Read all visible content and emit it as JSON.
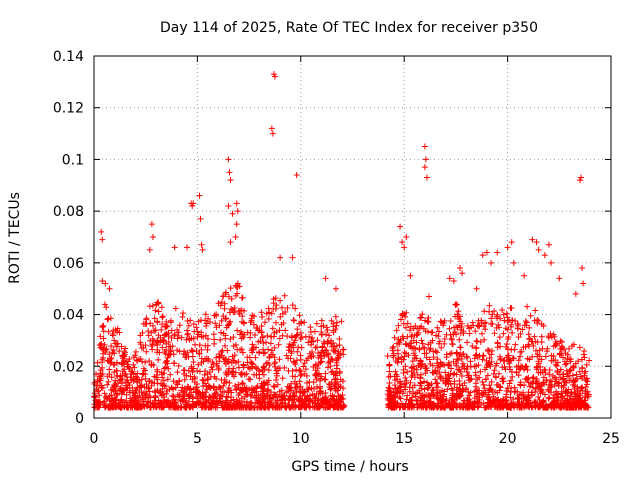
{
  "chart_data": {
    "type": "scatter",
    "title": "Day 114 of 2025, Rate Of TEC Index for receiver p350",
    "xlabel": "GPS time / hours",
    "ylabel": "ROTI / TECUs",
    "xlim": [
      0,
      25
    ],
    "ylim": [
      0,
      0.14
    ],
    "xticks": [
      "0",
      "5",
      "10",
      "15",
      "20",
      "25"
    ],
    "yticks": [
      "0",
      "0.02",
      "0.04",
      "0.06",
      "0.08",
      "0.1",
      "0.12",
      "0.14"
    ],
    "grid": true,
    "marker": "+",
    "color": "#ff0000",
    "segments": [
      {
        "x_start": 0.0,
        "x_end": 12.1
      },
      {
        "x_start": 14.2,
        "x_end": 23.95
      }
    ],
    "envelope": {
      "x": [
        0,
        0.5,
        1,
        1.5,
        2,
        2.5,
        3,
        3.5,
        4,
        4.5,
        5,
        5.5,
        6,
        6.5,
        7,
        7.5,
        8,
        8.5,
        9,
        9.5,
        10,
        10.5,
        11,
        11.5,
        12,
        14.2,
        14.5,
        15,
        15.5,
        16,
        16.5,
        17,
        17.5,
        18,
        18.5,
        19,
        19.5,
        20,
        20.5,
        21,
        21.5,
        22,
        22.5,
        23,
        23.5,
        23.95
      ],
      "y": [
        0.026,
        0.045,
        0.04,
        0.028,
        0.025,
        0.04,
        0.05,
        0.038,
        0.045,
        0.04,
        0.042,
        0.04,
        0.045,
        0.05,
        0.055,
        0.04,
        0.04,
        0.045,
        0.05,
        0.045,
        0.04,
        0.035,
        0.038,
        0.04,
        0.04,
        0.02,
        0.03,
        0.045,
        0.035,
        0.045,
        0.035,
        0.04,
        0.045,
        0.035,
        0.04,
        0.045,
        0.04,
        0.045,
        0.04,
        0.045,
        0.04,
        0.035,
        0.03,
        0.03,
        0.028,
        0.025
      ]
    },
    "outliers": [
      {
        "x": 0.35,
        "y": 0.072
      },
      {
        "x": 0.4,
        "y": 0.069
      },
      {
        "x": 0.4,
        "y": 0.053
      },
      {
        "x": 0.55,
        "y": 0.052
      },
      {
        "x": 0.75,
        "y": 0.05
      },
      {
        "x": 2.8,
        "y": 0.075
      },
      {
        "x": 2.7,
        "y": 0.065
      },
      {
        "x": 2.85,
        "y": 0.07
      },
      {
        "x": 3.9,
        "y": 0.066
      },
      {
        "x": 4.5,
        "y": 0.066
      },
      {
        "x": 4.7,
        "y": 0.083
      },
      {
        "x": 4.75,
        "y": 0.082
      },
      {
        "x": 4.8,
        "y": 0.083
      },
      {
        "x": 5.1,
        "y": 0.086
      },
      {
        "x": 5.15,
        "y": 0.077
      },
      {
        "x": 5.2,
        "y": 0.067
      },
      {
        "x": 5.25,
        "y": 0.065
      },
      {
        "x": 6.5,
        "y": 0.1
      },
      {
        "x": 6.55,
        "y": 0.095
      },
      {
        "x": 6.6,
        "y": 0.092
      },
      {
        "x": 6.5,
        "y": 0.082
      },
      {
        "x": 6.7,
        "y": 0.079
      },
      {
        "x": 6.9,
        "y": 0.083
      },
      {
        "x": 6.95,
        "y": 0.08
      },
      {
        "x": 6.9,
        "y": 0.075
      },
      {
        "x": 6.85,
        "y": 0.07
      },
      {
        "x": 6.6,
        "y": 0.068
      },
      {
        "x": 8.7,
        "y": 0.133
      },
      {
        "x": 8.75,
        "y": 0.132
      },
      {
        "x": 8.6,
        "y": 0.112
      },
      {
        "x": 8.65,
        "y": 0.11
      },
      {
        "x": 9.0,
        "y": 0.062
      },
      {
        "x": 9.6,
        "y": 0.062
      },
      {
        "x": 9.8,
        "y": 0.094
      },
      {
        "x": 11.2,
        "y": 0.054
      },
      {
        "x": 11.7,
        "y": 0.05
      },
      {
        "x": 14.2,
        "y": 0.024
      },
      {
        "x": 14.8,
        "y": 0.074
      },
      {
        "x": 14.9,
        "y": 0.068
      },
      {
        "x": 15.0,
        "y": 0.066
      },
      {
        "x": 15.1,
        "y": 0.07
      },
      {
        "x": 15.3,
        "y": 0.055
      },
      {
        "x": 16.0,
        "y": 0.105
      },
      {
        "x": 16.05,
        "y": 0.1
      },
      {
        "x": 16.0,
        "y": 0.097
      },
      {
        "x": 16.1,
        "y": 0.093
      },
      {
        "x": 16.2,
        "y": 0.047
      },
      {
        "x": 17.2,
        "y": 0.054
      },
      {
        "x": 17.4,
        "y": 0.053
      },
      {
        "x": 17.7,
        "y": 0.058
      },
      {
        "x": 17.8,
        "y": 0.056
      },
      {
        "x": 18.5,
        "y": 0.05
      },
      {
        "x": 18.8,
        "y": 0.063
      },
      {
        "x": 19.0,
        "y": 0.064
      },
      {
        "x": 19.2,
        "y": 0.06
      },
      {
        "x": 19.5,
        "y": 0.064
      },
      {
        "x": 20.0,
        "y": 0.066
      },
      {
        "x": 20.2,
        "y": 0.068
      },
      {
        "x": 20.3,
        "y": 0.06
      },
      {
        "x": 20.8,
        "y": 0.055
      },
      {
        "x": 21.2,
        "y": 0.069
      },
      {
        "x": 21.4,
        "y": 0.068
      },
      {
        "x": 21.5,
        "y": 0.065
      },
      {
        "x": 21.8,
        "y": 0.063
      },
      {
        "x": 22.0,
        "y": 0.067
      },
      {
        "x": 22.1,
        "y": 0.06
      },
      {
        "x": 22.5,
        "y": 0.054
      },
      {
        "x": 23.3,
        "y": 0.048
      },
      {
        "x": 23.5,
        "y": 0.092
      },
      {
        "x": 23.55,
        "y": 0.093
      },
      {
        "x": 23.6,
        "y": 0.058
      },
      {
        "x": 23.65,
        "y": 0.052
      }
    ]
  }
}
